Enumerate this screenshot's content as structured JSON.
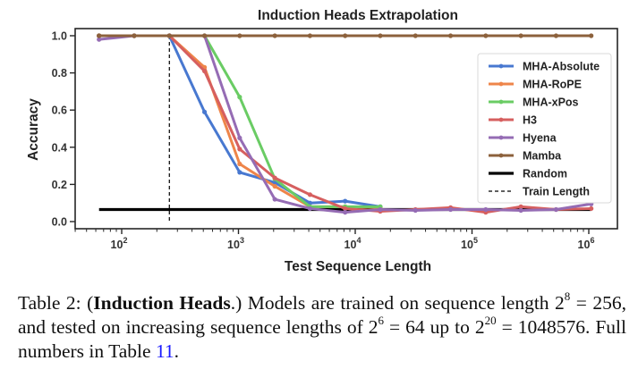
{
  "chart_data": {
    "type": "line",
    "title": "Induction Heads Extrapolation",
    "xlabel": "Test Sequence Length",
    "ylabel": "Accuracy",
    "xscale": "log",
    "xlim": [
      45,
      1500000
    ],
    "ylim": [
      -0.02,
      1.02
    ],
    "yticks": [
      0.0,
      0.2,
      0.4,
      0.6,
      0.8,
      1.0
    ],
    "ytick_labels": [
      "0.0",
      "0.2",
      "0.4",
      "0.6",
      "0.8",
      "1.0"
    ],
    "xticks": [
      100,
      1000,
      10000,
      100000,
      1000000
    ],
    "xtick_labels": [
      {
        "base": "10",
        "exp": "2"
      },
      {
        "base": "10",
        "exp": "3"
      },
      {
        "base": "10",
        "exp": "4"
      },
      {
        "base": "10",
        "exp": "5"
      },
      {
        "base": "10",
        "exp": "6"
      }
    ],
    "grid": false,
    "legend_position": "center-right",
    "train_length": 256,
    "random_baseline": {
      "name": "Random",
      "value": 0.065,
      "x": [
        64,
        1048576
      ],
      "color": "#000000"
    },
    "x": [
      64,
      128,
      256,
      512,
      1024,
      2048,
      4096,
      8192,
      16384,
      32768,
      65536,
      131072,
      262144,
      524288,
      1048576
    ],
    "series": [
      {
        "name": "MHA-Absolute",
        "color": "#4878d0",
        "values": [
          1.0,
          1.0,
          1.0,
          0.59,
          0.265,
          0.21,
          0.1,
          0.11,
          0.08,
          null,
          null,
          null,
          null,
          null,
          null
        ]
      },
      {
        "name": "MHA-RoPE",
        "color": "#ee854a",
        "values": [
          1.0,
          1.0,
          1.0,
          0.83,
          0.31,
          0.19,
          0.08,
          0.08,
          0.075,
          null,
          null,
          null,
          null,
          null,
          null
        ]
      },
      {
        "name": "MHA-xPos",
        "color": "#6acc64",
        "values": [
          1.0,
          1.0,
          1.0,
          1.0,
          0.67,
          0.23,
          0.08,
          0.08,
          0.08,
          null,
          null,
          null,
          null,
          null,
          null
        ]
      },
      {
        "name": "H3",
        "color": "#d65f5f",
        "values": [
          1.0,
          1.0,
          1.0,
          0.81,
          0.39,
          0.235,
          0.145,
          0.07,
          0.055,
          0.065,
          0.075,
          0.05,
          0.08,
          0.065,
          0.07
        ]
      },
      {
        "name": "Hyena",
        "color": "#956cb4",
        "values": [
          0.98,
          1.0,
          1.0,
          1.0,
          0.45,
          0.12,
          0.07,
          0.05,
          0.065,
          0.06,
          0.065,
          0.065,
          0.06,
          0.065,
          0.095
        ]
      },
      {
        "name": "Mamba",
        "color": "#8c613c",
        "values": [
          1.0,
          1.0,
          1.0,
          1.0,
          1.0,
          1.0,
          1.0,
          1.0,
          1.0,
          1.0,
          1.0,
          1.0,
          1.0,
          1.0,
          1.0
        ]
      }
    ],
    "legend": [
      "MHA-Absolute",
      "MHA-RoPE",
      "MHA-xPos",
      "H3",
      "Hyena",
      "Mamba",
      "Random",
      "Train Length"
    ]
  },
  "caption": {
    "label": "Table 2: (",
    "bold": "Induction Heads",
    "after_bold": ".) Models are trained on sequence length 2",
    "exp1": "8",
    "text2": " = 256, and tested on increasing sequence lengths of 2",
    "exp2": "6",
    "text3": " = 64 up to 2",
    "exp3": "20",
    "text4": " = 1048576. Full numbers in Table ",
    "ref": "11",
    "end": "."
  }
}
